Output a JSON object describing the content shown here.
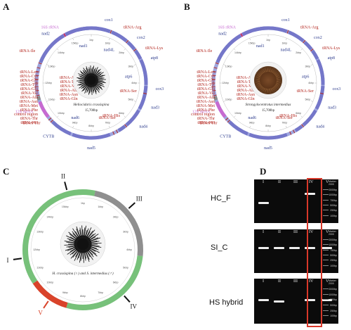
{
  "panels": {
    "a": "A",
    "b": "B",
    "c": "C",
    "d": "D"
  },
  "colors": {
    "ring_blue": "#7577c9",
    "ring_light": "#9fa6de",
    "rrna": "#c76ad1",
    "control": "#8a8a8a",
    "trna_red": "#b3261e",
    "ct_green": "#77c17a",
    "ct_gray": "#8f8f8f",
    "ct_red": "#d9432a",
    "gel_box": "#d9382a",
    "label_blue": "#2b3a8c"
  },
  "mapA": {
    "species": "Heliocidaris crassispina",
    "size": "15,708bp",
    "outer_labels": [
      {
        "t": "16S rRNA",
        "c": "rrna",
        "a": -30
      },
      {
        "t": "cox1",
        "c": "label_blue",
        "a": 12
      },
      {
        "t": "tRNA-Arg",
        "c": "trna_red",
        "a": 30
      },
      {
        "t": "cox2",
        "c": "label_blue",
        "a": 45
      },
      {
        "t": "tRNA-Lys",
        "c": "trna_red",
        "a": 57
      },
      {
        "t": "atp8",
        "c": "label_blue",
        "a": 67
      },
      {
        "t": "cox3",
        "c": "label_blue",
        "a": 95
      },
      {
        "t": "nad3",
        "c": "label_blue",
        "a": 112
      },
      {
        "t": "nad4",
        "c": "label_blue",
        "a": 132
      },
      {
        "t": "nad5",
        "c": "label_blue",
        "a": 180
      },
      {
        "t": "CYTB",
        "c": "label_blue",
        "a": 215
      },
      {
        "t": "12S rRNA",
        "c": "rrna",
        "a": 244
      },
      {
        "t": "tRNA-Thr",
        "c": "trna_red",
        "a": 232
      },
      {
        "t": "tRNA-Ile",
        "c": "trna_red",
        "a": 300
      },
      {
        "t": "nad2",
        "c": "label_blue",
        "a": 320
      }
    ],
    "inner_labels": [
      {
        "t": "nad4L",
        "c": "label_blue",
        "a": 28
      },
      {
        "t": "atp6",
        "c": "label_blue",
        "a": 80
      },
      {
        "t": "tRNA-Ser",
        "c": "trna_red",
        "a": 102
      },
      {
        "t": "tRNA-His",
        "c": "trna_red",
        "a": 148
      },
      {
        "t": "tRNA-Ser",
        "c": "trna_red",
        "a": 155
      },
      {
        "t": "nad6",
        "c": "label_blue",
        "a": 205
      },
      {
        "t": "nad1",
        "c": "label_blue",
        "a": 348
      }
    ],
    "left_trna": [
      "tRNA-Leu",
      "tRNA-Cys",
      "tRNA-Gly",
      "tRNA-Tyr",
      "tRNA-Glu",
      "tRNA-Val",
      "tRNA-Ala",
      "tRNA-Asn",
      "tRNA-Met",
      "tRNA-Phe",
      "control region",
      "tRNA-Thr",
      "tRNA-Pro"
    ],
    "mid_trna": [
      "tRNA-Asp",
      "tRNA-Trp",
      "tRNA-Val",
      "tRNA-Ala",
      "tRNA-Asn",
      "tRNA-Gln"
    ],
    "ticks": [
      "1bp",
      "1kbp",
      "2kbp",
      "3kbp",
      "4kbp",
      "5kbp",
      "6kbp",
      "7kbp",
      "8kbp",
      "9kbp",
      "10kbp",
      "11kbp",
      "12kbp",
      "13kbp",
      "14kbp",
      "15kbp"
    ]
  },
  "mapB": {
    "species": "Strongylocentrotus intermedius",
    "size": "15,708bp"
  },
  "mapC": {
    "title": "H. crassispina (♀) and S. intermedius (♂)",
    "segments": [
      {
        "label": "II",
        "color": "ct_green",
        "a0": -72,
        "a1": 12
      },
      {
        "label": "III",
        "color": "ct_gray",
        "a0": 12,
        "a1": 96
      },
      {
        "label": "IV",
        "color": "ct_green",
        "a0": 96,
        "a1": 196
      },
      {
        "label": "V",
        "color": "ct_red",
        "a0": 196,
        "a1": 236
      },
      {
        "label": "I",
        "color": "ct_green",
        "a0": 236,
        "a1": 288
      }
    ],
    "arrows": [
      {
        "label": "II",
        "a": -15
      },
      {
        "label": "III",
        "a": 48
      },
      {
        "label": "IV",
        "a": 138
      },
      {
        "label": "V",
        "a": 214
      },
      {
        "label": "I",
        "a": 262
      }
    ],
    "ticks": [
      "1bp",
      "1kbp",
      "2kbp",
      "3kbp",
      "4kbp",
      "5kbp",
      "6kbp",
      "7kbp",
      "8kbp",
      "9kbp",
      "10kbp",
      "11kbp",
      "12kbp",
      "13kbp",
      "14kbp",
      "15kbp"
    ]
  },
  "gels": [
    {
      "label": "HC_F",
      "lanes": [
        "I",
        "II",
        "III",
        "IV",
        "V"
      ],
      "marker": "Marker 2000",
      "bands": [
        1,
        0,
        0,
        1,
        0
      ],
      "band_level": [
        0.52,
        0,
        0,
        0.3,
        0
      ]
    },
    {
      "label": "SI_C",
      "lanes": [
        "I",
        "II",
        "III",
        "IV",
        "V"
      ],
      "marker": "Marker 2000",
      "bands": [
        1,
        1,
        1,
        1,
        1
      ],
      "band_level": [
        0.4,
        0.4,
        0.4,
        0.4,
        0.4
      ]
    },
    {
      "label": "HS hybrid",
      "lanes": [
        "I",
        "II",
        "III",
        "IV",
        "V"
      ],
      "marker": "Marker 2000",
      "bands": [
        1,
        1,
        0,
        1,
        1
      ],
      "band_level": [
        0.45,
        0.48,
        0,
        0.45,
        0.45
      ]
    }
  ],
  "marker_sizes": [
    "2000bp",
    "1000bp",
    "750bp",
    "500bp",
    "250bp",
    "100bp"
  ]
}
